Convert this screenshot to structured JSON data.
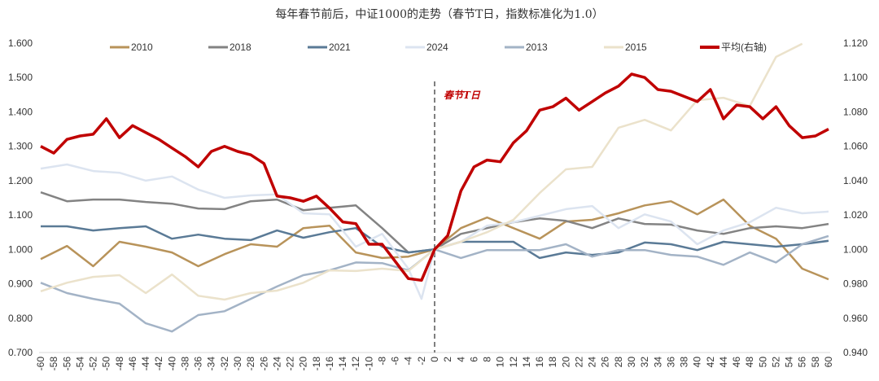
{
  "chart_data": {
    "type": "line",
    "title": "每年春节前后，中证1000的走势（春节T日，指数标准化为1.0）",
    "xlabel": "",
    "ylabel": "",
    "xlim": [
      -60,
      60
    ],
    "ylim_left": [
      0.7,
      1.6
    ],
    "ylim_right": [
      0.94,
      1.12
    ],
    "x_ticks": [
      "-60",
      "-58",
      "-56",
      "-54",
      "-52",
      "-50",
      "-48",
      "-46",
      "-44",
      "-42",
      "-40",
      "-38",
      "-36",
      "-34",
      "-32",
      "-30",
      "-28",
      "-26",
      "-24",
      "-22",
      "-20",
      "-18",
      "-16",
      "-14",
      "-12",
      "-10",
      "-8",
      "-6",
      "-4",
      "-2",
      "0",
      "2",
      "4",
      "6",
      "8",
      "10",
      "12",
      "14",
      "16",
      "18",
      "20",
      "22",
      "24",
      "26",
      "28",
      "30",
      "32",
      "34",
      "36",
      "38",
      "40",
      "42",
      "44",
      "46",
      "48",
      "50",
      "52",
      "54",
      "56",
      "58",
      "60"
    ],
    "y_ticks_left": [
      "0.700",
      "0.800",
      "0.900",
      "1.000",
      "1.100",
      "1.200",
      "1.300",
      "1.400",
      "1.500",
      "1.600"
    ],
    "y_ticks_right": [
      "0.940",
      "0.960",
      "0.980",
      "1.000",
      "1.020",
      "1.040",
      "1.060",
      "1.080",
      "1.100",
      "1.120"
    ],
    "grid": false,
    "legend_position": "top",
    "annotation": "春节T日",
    "series": [
      {
        "name": "2010",
        "axis": "left",
        "color": "#b8935a",
        "x": [
          -60,
          -56,
          -52,
          -48,
          -44,
          -40,
          -36,
          -32,
          -28,
          -24,
          -20,
          -16,
          -12,
          -8,
          -4,
          0,
          4,
          8,
          12,
          16,
          20,
          24,
          28,
          32,
          36,
          40,
          44,
          48,
          52,
          56,
          60
        ],
        "values": [
          0.972,
          1.01,
          0.951,
          1.022,
          1.008,
          0.991,
          0.951,
          0.986,
          1.015,
          1.008,
          1.062,
          1.069,
          0.991,
          0.975,
          0.979,
          1.0,
          1.062,
          1.093,
          1.062,
          1.031,
          1.081,
          1.086,
          1.105,
          1.128,
          1.14,
          1.102,
          1.145,
          1.069,
          1.031,
          0.944,
          0.913
        ]
      },
      {
        "name": "2018",
        "axis": "left",
        "color": "#838383",
        "x": [
          -60,
          -56,
          -52,
          -48,
          -44,
          -40,
          -36,
          -32,
          -28,
          -24,
          -20,
          -16,
          -12,
          -8,
          -4,
          0,
          4,
          8,
          12,
          16,
          20,
          24,
          28,
          32,
          36,
          40,
          44,
          48,
          52,
          56,
          60
        ],
        "values": [
          1.166,
          1.14,
          1.145,
          1.145,
          1.138,
          1.133,
          1.119,
          1.117,
          1.14,
          1.145,
          1.114,
          1.121,
          1.128,
          1.062,
          0.991,
          1.0,
          1.045,
          1.062,
          1.079,
          1.09,
          1.083,
          1.062,
          1.09,
          1.074,
          1.072,
          1.055,
          1.045,
          1.062,
          1.067,
          1.062,
          1.074
        ]
      },
      {
        "name": "2021",
        "axis": "left",
        "color": "#5a7a96",
        "x": [
          -60,
          -56,
          -52,
          -48,
          -44,
          -40,
          -36,
          -32,
          -28,
          -24,
          -20,
          -16,
          -12,
          -8,
          -4,
          0,
          4,
          8,
          12,
          16,
          20,
          24,
          28,
          32,
          36,
          40,
          44,
          48,
          52,
          56,
          60
        ],
        "values": [
          1.067,
          1.067,
          1.055,
          1.062,
          1.067,
          1.031,
          1.043,
          1.031,
          1.027,
          1.055,
          1.034,
          1.05,
          1.062,
          1.008,
          0.991,
          1.0,
          1.022,
          1.022,
          1.022,
          0.975,
          0.991,
          0.984,
          0.991,
          1.02,
          1.015,
          0.998,
          1.022,
          1.015,
          1.008,
          1.015,
          1.025
        ]
      },
      {
        "name": "2024",
        "axis": "left",
        "color": "#dce4f0",
        "x": [
          -60,
          -56,
          -52,
          -48,
          -44,
          -40,
          -36,
          -32,
          -28,
          -24,
          -20,
          -16,
          -12,
          -8,
          -4,
          -2,
          0,
          4,
          8,
          12,
          16,
          20,
          24,
          28,
          32,
          36,
          40,
          44,
          48,
          52,
          56,
          60
        ],
        "values": [
          1.235,
          1.247,
          1.228,
          1.223,
          1.2,
          1.212,
          1.174,
          1.15,
          1.157,
          1.16,
          1.105,
          1.102,
          1.008,
          1.045,
          0.944,
          0.856,
          1.0,
          1.022,
          1.069,
          1.079,
          1.098,
          1.117,
          1.126,
          1.062,
          1.102,
          1.081,
          1.015,
          1.055,
          1.079,
          1.121,
          1.105,
          1.11
        ]
      },
      {
        "name": "2013",
        "axis": "left",
        "color": "#a3b3c6",
        "x": [
          -60,
          -56,
          -52,
          -48,
          -44,
          -40,
          -36,
          -32,
          -28,
          -24,
          -20,
          -16,
          -12,
          -8,
          -4,
          0,
          4,
          8,
          12,
          16,
          20,
          24,
          28,
          32,
          36,
          40,
          44,
          48,
          52,
          56,
          60
        ],
        "values": [
          0.903,
          0.873,
          0.856,
          0.842,
          0.785,
          0.761,
          0.809,
          0.82,
          0.856,
          0.892,
          0.925,
          0.939,
          0.962,
          0.96,
          0.939,
          1.0,
          0.975,
          0.998,
          0.998,
          0.998,
          1.015,
          0.979,
          0.998,
          0.998,
          0.984,
          0.979,
          0.955,
          0.991,
          0.962,
          1.015,
          1.039
        ]
      },
      {
        "name": "2015",
        "axis": "left",
        "color": "#ebe2cb",
        "x": [
          -60,
          -56,
          -52,
          -48,
          -44,
          -40,
          -36,
          -32,
          -28,
          -24,
          -20,
          -16,
          -12,
          -8,
          -4,
          0,
          4,
          8,
          12,
          16,
          20,
          24,
          28,
          32,
          36,
          40,
          44,
          48,
          52,
          56
        ],
        "values": [
          0.878,
          0.903,
          0.92,
          0.925,
          0.873,
          0.927,
          0.865,
          0.854,
          0.873,
          0.88,
          0.903,
          0.939,
          0.937,
          0.944,
          0.937,
          1.0,
          1.022,
          1.05,
          1.086,
          1.164,
          1.233,
          1.24,
          1.354,
          1.377,
          1.346,
          1.434,
          1.441,
          1.417,
          1.56,
          1.598
        ]
      },
      {
        "name": "平均(右轴)",
        "axis": "right",
        "color": "#c00000",
        "x": [
          -60,
          -58,
          -56,
          -54,
          -52,
          -50,
          -48,
          -46,
          -44,
          -42,
          -40,
          -38,
          -36,
          -34,
          -32,
          -30,
          -28,
          -26,
          -24,
          -22,
          -20,
          -18,
          -16,
          -14,
          -12,
          -10,
          -8,
          -6,
          -4,
          -2,
          0,
          2,
          4,
          6,
          8,
          10,
          12,
          14,
          16,
          18,
          20,
          22,
          24,
          26,
          28,
          30,
          32,
          34,
          36,
          38,
          40,
          42,
          44,
          46,
          48,
          50,
          52,
          54,
          56,
          58,
          60
        ],
        "values": [
          1.06,
          1.056,
          1.064,
          1.066,
          1.067,
          1.076,
          1.065,
          1.072,
          1.068,
          1.064,
          1.059,
          1.054,
          1.048,
          1.057,
          1.06,
          1.057,
          1.055,
          1.05,
          1.031,
          1.03,
          1.028,
          1.031,
          1.024,
          1.016,
          1.015,
          1.003,
          1.003,
          0.993,
          0.983,
          0.982,
          1.0,
          1.008,
          1.034,
          1.048,
          1.052,
          1.051,
          1.062,
          1.069,
          1.081,
          1.083,
          1.088,
          1.081,
          1.086,
          1.091,
          1.095,
          1.102,
          1.1,
          1.093,
          1.092,
          1.089,
          1.086,
          1.093,
          1.076,
          1.084,
          1.083,
          1.076,
          1.083,
          1.072,
          1.065,
          1.066,
          1.07
        ]
      }
    ]
  }
}
